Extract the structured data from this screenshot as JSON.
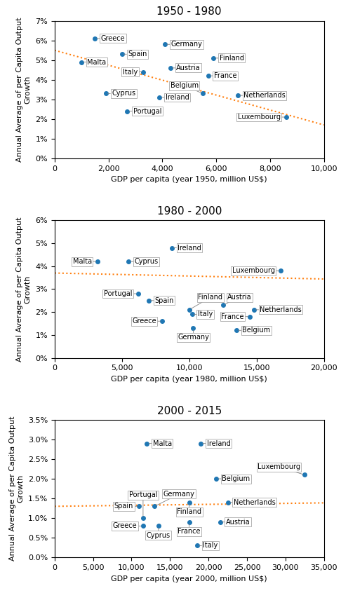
{
  "chart_data": [
    {
      "type": "scatter",
      "title": "1950 - 1980",
      "x_label": "GDP per capita (year 1950, million US$)",
      "y_label": "Annual Average of per Capita Output\nGrowth",
      "xlim": [
        0,
        10000
      ],
      "ylim": [
        0.0,
        0.07
      ],
      "xticks": [
        0,
        {
          "value": 2000,
          "label": "2,000"
        },
        {
          "value": 4000,
          "label": "4,000"
        },
        {
          "value": 6000,
          "label": "6,000"
        },
        {
          "value": 8000,
          "label": "8,000"
        },
        {
          "value": 10000,
          "label": "10,000"
        }
      ],
      "yticks": [
        {
          "value": 0.0,
          "label": "0%"
        },
        {
          "value": 0.01,
          "label": "1%"
        },
        {
          "value": 0.02,
          "label": "2%"
        },
        {
          "value": 0.03,
          "label": "3%"
        },
        {
          "value": 0.04,
          "label": "4%"
        },
        {
          "value": 0.05,
          "label": "5%"
        },
        {
          "value": 0.06,
          "label": "6%"
        },
        {
          "value": 0.07,
          "label": "7%"
        }
      ],
      "series": [
        {
          "type": "scatter",
          "point_labels": [
            "Malta",
            "Greece",
            "Cyprus",
            "Spain",
            "Portugal",
            "Italy",
            "Germany",
            "Ireland",
            "Austria",
            "Finland",
            "France",
            "Belgium",
            "Netherlands",
            "Luxembourg"
          ],
          "x": [
            1000,
            1500,
            1900,
            2500,
            2700,
            3300,
            4100,
            3900,
            4300,
            5900,
            5700,
            5500,
            6800,
            8600
          ],
          "values": [
            0.049,
            0.061,
            0.033,
            0.053,
            0.024,
            0.044,
            0.058,
            0.031,
            0.046,
            0.051,
            0.042,
            0.033,
            0.032,
            0.021
          ]
        },
        {
          "type": "line",
          "line_style": "dotted",
          "x": [
            0,
            10000
          ],
          "values": [
            0.055,
            0.017
          ]
        }
      ]
    },
    {
      "type": "scatter",
      "title": "1980 - 2000",
      "x_label": "GDP per capita (year 1980, million US$)",
      "y_label": "Annual Average of per Capita Output\nGrowth",
      "xlim": [
        0,
        20000
      ],
      "ylim": [
        0.0,
        0.06
      ],
      "xticks": [
        0,
        {
          "value": 5000,
          "label": "5,000"
        },
        {
          "value": 10000,
          "label": "10,000"
        },
        {
          "value": 15000,
          "label": "15,000"
        },
        {
          "value": 20000,
          "label": "20,000"
        }
      ],
      "yticks": [
        {
          "value": 0.0,
          "label": "0%"
        },
        {
          "value": 0.01,
          "label": "1%"
        },
        {
          "value": 0.02,
          "label": "2%"
        },
        {
          "value": 0.03,
          "label": "3%"
        },
        {
          "value": 0.04,
          "label": "4%"
        },
        {
          "value": 0.05,
          "label": "5%"
        },
        {
          "value": 0.06,
          "label": "6%"
        }
      ],
      "series": [
        {
          "type": "scatter",
          "point_labels": [
            "Malta",
            "Cyprus",
            "Portugal",
            "Spain",
            "Greece",
            "Ireland",
            "Finland",
            "Italy",
            "Germany",
            "Austria",
            "Belgium",
            "France",
            "Netherlands",
            "Luxembourg"
          ],
          "x": [
            3200,
            5500,
            6200,
            7000,
            8000,
            8700,
            10000,
            10200,
            10300,
            12500,
            13500,
            14500,
            14800,
            16800
          ],
          "values": [
            0.042,
            0.042,
            0.028,
            0.025,
            0.016,
            0.048,
            0.021,
            0.019,
            0.013,
            0.023,
            0.012,
            0.018,
            0.021,
            0.038
          ]
        },
        {
          "type": "line",
          "line_style": "dotted",
          "x": [
            0,
            20000
          ],
          "values": [
            0.037,
            0.0344
          ]
        }
      ]
    },
    {
      "type": "scatter",
      "title": "2000 - 2015",
      "x_label": "GDP per capita (year 2000, million US$)",
      "y_label": "Annual Average of per Capita Output\nGrowth",
      "xlim": [
        0,
        35000
      ],
      "ylim": [
        0.0,
        0.035
      ],
      "xticks": [
        0,
        {
          "value": 5000,
          "label": "5,000"
        },
        {
          "value": 10000,
          "label": "10,000"
        },
        {
          "value": 15000,
          "label": "15,000"
        },
        {
          "value": 20000,
          "label": "20,000"
        },
        {
          "value": 25000,
          "label": "25,000"
        },
        {
          "value": 30000,
          "label": "30,000"
        },
        {
          "value": 35000,
          "label": "35,000"
        }
      ],
      "yticks": [
        {
          "value": 0.0,
          "label": "0.0%"
        },
        {
          "value": 0.005,
          "label": "0.5%"
        },
        {
          "value": 0.01,
          "label": "1.0%"
        },
        {
          "value": 0.015,
          "label": "1.5%"
        },
        {
          "value": 0.02,
          "label": "2.0%"
        },
        {
          "value": 0.025,
          "label": "2.5%"
        },
        {
          "value": 0.03,
          "label": "3.0%"
        },
        {
          "value": 0.035,
          "label": "3.5%"
        }
      ],
      "series": [
        {
          "type": "scatter",
          "point_labels": [
            "Malta",
            "Cyprus",
            "Greece",
            "Spain",
            "Portugal",
            "Germany",
            "Ireland",
            "Finland",
            "France",
            "Italy",
            "Belgium",
            "Austria",
            "Netherlands",
            "Luxembourg"
          ],
          "x": [
            12000,
            13500,
            11500,
            11000,
            11500,
            13000,
            19000,
            17500,
            17500,
            18500,
            21000,
            21500,
            22500,
            32500
          ],
          "values": [
            0.029,
            0.008,
            0.008,
            0.013,
            0.01,
            0.013,
            0.029,
            0.014,
            0.009,
            0.003,
            0.02,
            0.009,
            0.014,
            0.021
          ]
        },
        {
          "type": "line",
          "line_style": "dotted",
          "x": [
            0,
            35000
          ],
          "values": [
            0.013,
            0.013875
          ]
        }
      ]
    }
  ]
}
